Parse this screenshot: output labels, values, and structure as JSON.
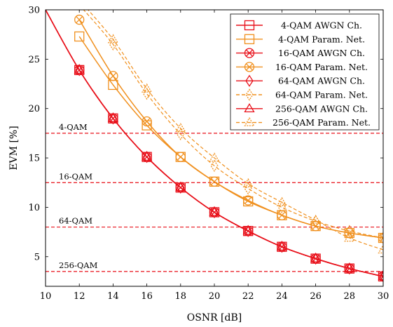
{
  "chart_data": {
    "type": "line",
    "xlabel": "OSNR [dB]",
    "ylabel": "EVM [%]",
    "xlim": [
      10,
      30
    ],
    "ylim": [
      2,
      30
    ],
    "xticks": [
      "10",
      "12",
      "14",
      "16",
      "18",
      "20",
      "22",
      "24",
      "26",
      "28",
      "30"
    ],
    "yticks": [
      "5",
      "10",
      "15",
      "20",
      "25",
      "30"
    ],
    "grid": false,
    "legend_position": "top-right",
    "colors": {
      "awgn": "#e8101a",
      "param": "#f0901e",
      "threshold": "#e8101a"
    },
    "reference_lines": [
      {
        "label": "4-QAM",
        "y": 17.5
      },
      {
        "label": "16-QAM",
        "y": 12.5
      },
      {
        "label": "64-QAM",
        "y": 8.0
      },
      {
        "label": "256-QAM",
        "y": 3.5
      }
    ],
    "series": [
      {
        "name": "4-QAM AWGN Ch.",
        "color": "#e8101a",
        "marker": "square",
        "dashed": false,
        "x": [
          10,
          12,
          14,
          16,
          18,
          20,
          22,
          24,
          26,
          28,
          30
        ],
        "y": [
          30.0,
          23.9,
          19.0,
          15.1,
          12.0,
          9.5,
          7.6,
          6.0,
          4.8,
          3.8,
          3.0
        ]
      },
      {
        "name": "4-QAM Param. Net.",
        "color": "#f0901e",
        "marker": "square",
        "dashed": false,
        "x": [
          12,
          14,
          16,
          18,
          20,
          22,
          24,
          26,
          28,
          30
        ],
        "y": [
          27.3,
          22.4,
          18.3,
          15.1,
          12.6,
          10.6,
          9.2,
          8.1,
          7.4,
          6.9
        ]
      },
      {
        "name": "16-QAM AWGN Ch.",
        "color": "#e8101a",
        "marker": "circle-x",
        "dashed": false,
        "x": [
          10,
          12,
          14,
          16,
          18,
          20,
          22,
          24,
          26,
          28,
          30
        ],
        "y": [
          30.0,
          23.9,
          19.0,
          15.1,
          12.0,
          9.5,
          7.6,
          6.0,
          4.8,
          3.8,
          3.0
        ]
      },
      {
        "name": "16-QAM Param. Net.",
        "color": "#f0901e",
        "marker": "circle-x",
        "dashed": false,
        "x": [
          12,
          14,
          16,
          18,
          20,
          22,
          24,
          26,
          28,
          30
        ],
        "y": [
          29.0,
          23.3,
          18.7,
          15.1,
          12.6,
          10.7,
          9.2,
          8.1,
          7.4,
          6.9
        ]
      },
      {
        "name": "64-QAM AWGN Ch.",
        "color": "#e8101a",
        "marker": "diamond",
        "dashed": false,
        "x": [
          10,
          12,
          14,
          16,
          18,
          20,
          22,
          24,
          26,
          28,
          30
        ],
        "y": [
          30.0,
          23.9,
          19.0,
          15.1,
          12.0,
          9.5,
          7.6,
          6.0,
          4.8,
          3.8,
          3.0
        ]
      },
      {
        "name": "64-QAM Param. Net.",
        "color": "#f0901e",
        "marker": "diamond-open",
        "dashed": true,
        "x": [
          12,
          14,
          16,
          18,
          20,
          22,
          24,
          26,
          28,
          30
        ],
        "y": [
          30.5,
          26.5,
          21.5,
          17.4,
          14.2,
          11.9,
          10.0,
          8.6,
          7.6,
          6.9
        ]
      },
      {
        "name": "256-QAM AWGN Ch.",
        "color": "#e8101a",
        "marker": "triangle",
        "dashed": false,
        "x": [
          10,
          12,
          14,
          16,
          18,
          20,
          22,
          24,
          26,
          28,
          30
        ],
        "y": [
          30.0,
          23.9,
          19.0,
          15.1,
          12.0,
          9.5,
          7.6,
          6.0,
          4.8,
          3.8,
          3.0
        ]
      },
      {
        "name": "256-QAM Param. Net.",
        "color": "#f0901e",
        "marker": "triangle-open",
        "dashed": true,
        "x": [
          12,
          14,
          16,
          18,
          20,
          22,
          24,
          26,
          28,
          30
        ],
        "y": [
          31.0,
          27.0,
          22.0,
          18.0,
          15.0,
          12.4,
          10.5,
          8.7,
          6.9,
          5.7
        ]
      }
    ]
  }
}
